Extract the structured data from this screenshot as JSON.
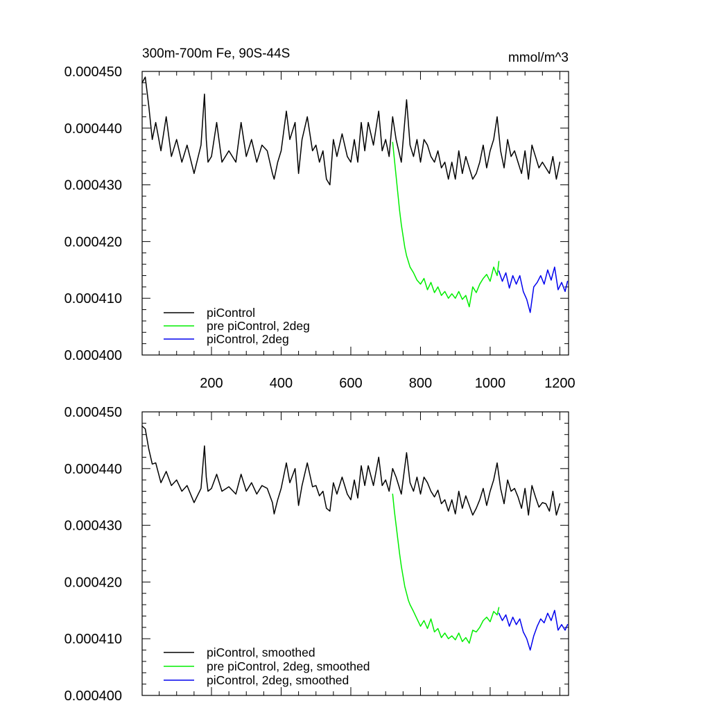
{
  "chart_data": [
    {
      "type": "line",
      "title": "300m-700m Fe, 90S-44S",
      "units": "mmol/m^3",
      "xlim": [
        1,
        1225
      ],
      "ylim": [
        0.0004,
        0.00045
      ],
      "x_ticks": [
        200,
        400,
        600,
        800,
        1000,
        1200
      ],
      "x_tick_labels": [
        "200",
        "400",
        "600",
        "800",
        "1000",
        "1200"
      ],
      "y_ticks": [
        0.0004,
        0.00041,
        0.00042,
        0.00043,
        0.00044,
        0.00045
      ],
      "y_tick_labels": [
        "0.000400",
        "0.000410",
        "0.000420",
        "0.000430",
        "0.000440",
        "0.000450"
      ],
      "legend_position": "bottom-left",
      "series": [
        {
          "name": "piControl",
          "color": "#000000",
          "x": [
            1,
            10,
            20,
            30,
            40,
            55,
            70,
            85,
            100,
            115,
            130,
            150,
            170,
            180,
            185,
            190,
            200,
            215,
            230,
            250,
            270,
            285,
            300,
            315,
            330,
            345,
            360,
            375,
            380,
            390,
            400,
            415,
            425,
            440,
            450,
            460,
            475,
            490,
            500,
            510,
            520,
            530,
            540,
            550,
            560,
            575,
            590,
            600,
            610,
            620,
            630,
            640,
            650,
            665,
            680,
            690,
            700,
            710,
            720,
            730,
            745,
            760,
            770,
            780,
            790,
            800,
            810,
            820,
            830,
            840,
            850,
            860,
            870,
            880,
            890,
            900,
            910,
            920,
            930,
            940,
            950,
            960,
            970,
            980,
            990,
            1000,
            1010,
            1020,
            1030,
            1040,
            1050,
            1060,
            1070,
            1080,
            1090,
            1100,
            1110,
            1120,
            1130,
            1140,
            1150,
            1160,
            1170,
            1180,
            1190,
            1200
          ],
          "values": [
            0.000448,
            0.000449,
            0.000444,
            0.000438,
            0.000441,
            0.000436,
            0.000442,
            0.000435,
            0.000438,
            0.000434,
            0.000437,
            0.000432,
            0.000437,
            0.000446,
            0.000438,
            0.000434,
            0.000435,
            0.000441,
            0.000434,
            0.000436,
            0.000434,
            0.000441,
            0.000435,
            0.000438,
            0.000434,
            0.000437,
            0.000436,
            0.000432,
            0.000431,
            0.000434,
            0.000436,
            0.000443,
            0.000438,
            0.000441,
            0.000432,
            0.000438,
            0.000442,
            0.000436,
            0.000437,
            0.000434,
            0.000436,
            0.000431,
            0.00043,
            0.000438,
            0.000435,
            0.000439,
            0.000435,
            0.000434,
            0.000438,
            0.000434,
            0.000441,
            0.000436,
            0.000441,
            0.000437,
            0.000443,
            0.000436,
            0.000438,
            0.000435,
            0.000442,
            0.000438,
            0.000434,
            0.000445,
            0.000437,
            0.000435,
            0.000438,
            0.000434,
            0.000438,
            0.000437,
            0.000435,
            0.000434,
            0.000436,
            0.000433,
            0.000434,
            0.000431,
            0.000434,
            0.000431,
            0.000436,
            0.000432,
            0.000435,
            0.000433,
            0.000431,
            0.000432,
            0.000434,
            0.000437,
            0.000433,
            0.000436,
            0.000438,
            0.000442,
            0.000436,
            0.000433,
            0.000438,
            0.000435,
            0.000436,
            0.000434,
            0.000432,
            0.000436,
            0.000431,
            0.000437,
            0.000435,
            0.000433,
            0.000434,
            0.000433,
            0.000432,
            0.000435,
            0.000431,
            0.000434
          ]
        },
        {
          "name": "pre piControl, 2deg",
          "color": "#00ee00",
          "x": [
            720,
            725,
            730,
            735,
            740,
            745,
            750,
            755,
            760,
            765,
            770,
            780,
            790,
            800,
            810,
            820,
            830,
            840,
            850,
            860,
            870,
            880,
            890,
            900,
            910,
            920,
            930,
            940,
            950,
            960,
            970,
            980,
            990,
            1000,
            1010,
            1020,
            1025
          ],
          "values": [
            0.0004375,
            0.0004345,
            0.0004315,
            0.0004285,
            0.0004255,
            0.000423,
            0.000421,
            0.000419,
            0.0004175,
            0.0004165,
            0.0004155,
            0.0004145,
            0.0004132,
            0.0004125,
            0.0004135,
            0.0004115,
            0.0004128,
            0.000411,
            0.000412,
            0.0004105,
            0.0004112,
            0.00041,
            0.0004108,
            0.00041,
            0.0004112,
            0.0004098,
            0.0004105,
            0.0004085,
            0.000412,
            0.000411,
            0.0004125,
            0.0004135,
            0.0004142,
            0.000413,
            0.0004155,
            0.000414,
            0.0004165
          ]
        },
        {
          "name": "piControl, 2deg",
          "color": "#0000ee",
          "x": [
            1025,
            1035,
            1045,
            1055,
            1065,
            1075,
            1085,
            1095,
            1105,
            1115,
            1125,
            1135,
            1145,
            1155,
            1165,
            1175,
            1185,
            1195,
            1205,
            1215,
            1222
          ],
          "values": [
            0.0004148,
            0.000413,
            0.0004145,
            0.0004118,
            0.000414,
            0.0004125,
            0.000414,
            0.0004112,
            0.0004098,
            0.0004075,
            0.000412,
            0.0004128,
            0.000414,
            0.0004125,
            0.000415,
            0.0004132,
            0.0004155,
            0.0004115,
            0.0004128,
            0.0004112,
            0.000413
          ]
        }
      ]
    },
    {
      "type": "line",
      "title": "",
      "xlim": [
        1,
        1225
      ],
      "ylim": [
        0.0004,
        0.00045
      ],
      "x_ticks": [
        200,
        400,
        600,
        800,
        1000,
        1200
      ],
      "x_tick_labels": [],
      "y_ticks": [
        0.0004,
        0.00041,
        0.00042,
        0.00043,
        0.00044,
        0.00045
      ],
      "y_tick_labels": [
        "0.000400",
        "0.000410",
        "0.000420",
        "0.000430",
        "0.000440",
        "0.000450"
      ],
      "legend_position": "bottom-left",
      "series": [
        {
          "name": "piControl, smoothed",
          "color": "#000000",
          "x": [
            1,
            10,
            20,
            30,
            40,
            55,
            70,
            85,
            100,
            115,
            130,
            150,
            170,
            180,
            185,
            190,
            200,
            215,
            230,
            250,
            270,
            285,
            300,
            315,
            330,
            345,
            360,
            375,
            380,
            390,
            400,
            415,
            425,
            440,
            450,
            460,
            475,
            490,
            500,
            510,
            520,
            530,
            540,
            550,
            560,
            575,
            590,
            600,
            610,
            620,
            630,
            640,
            650,
            665,
            680,
            690,
            700,
            710,
            720,
            730,
            745,
            760,
            770,
            780,
            790,
            800,
            810,
            820,
            830,
            840,
            850,
            860,
            870,
            880,
            890,
            900,
            910,
            920,
            930,
            940,
            950,
            960,
            970,
            980,
            990,
            1000,
            1010,
            1020,
            1030,
            1040,
            1050,
            1060,
            1070,
            1080,
            1090,
            1100,
            1110,
            1120,
            1130,
            1140,
            1150,
            1160,
            1170,
            1180,
            1190,
            1200
          ],
          "values": [
            0.0004475,
            0.000447,
            0.0004435,
            0.0004408,
            0.000441,
            0.0004375,
            0.0004395,
            0.000437,
            0.000438,
            0.000436,
            0.000437,
            0.000434,
            0.0004365,
            0.000444,
            0.0004385,
            0.000436,
            0.0004365,
            0.000439,
            0.000436,
            0.0004368,
            0.0004355,
            0.000439,
            0.000436,
            0.0004375,
            0.0004355,
            0.000437,
            0.0004365,
            0.000434,
            0.000432,
            0.0004345,
            0.0004365,
            0.000441,
            0.0004375,
            0.00044,
            0.0004335,
            0.000437,
            0.000441,
            0.0004368,
            0.000437,
            0.0004352,
            0.000436,
            0.000433,
            0.0004325,
            0.0004375,
            0.0004355,
            0.0004385,
            0.0004355,
            0.0004345,
            0.000438,
            0.0004348,
            0.0004405,
            0.000437,
            0.0004405,
            0.000437,
            0.000442,
            0.000437,
            0.000438,
            0.000436,
            0.00044,
            0.0004385,
            0.0004355,
            0.0004428,
            0.0004375,
            0.000436,
            0.0004385,
            0.0004355,
            0.0004385,
            0.0004375,
            0.000436,
            0.000435,
            0.0004362,
            0.0004338,
            0.0004345,
            0.0004325,
            0.0004345,
            0.000432,
            0.000436,
            0.000433,
            0.0004352,
            0.0004335,
            0.0004318,
            0.000433,
            0.0004345,
            0.0004365,
            0.0004335,
            0.000436,
            0.000438,
            0.000441,
            0.0004365,
            0.0004338,
            0.000438,
            0.000436,
            0.0004365,
            0.000435,
            0.000433,
            0.0004365,
            0.0004318,
            0.000437,
            0.000435,
            0.0004332,
            0.000434,
            0.0004338,
            0.0004325,
            0.000436,
            0.0004318,
            0.0004338
          ]
        },
        {
          "name": "pre piControl, 2deg, smoothed",
          "color": "#00ee00",
          "x": [
            720,
            725,
            730,
            735,
            740,
            745,
            750,
            755,
            760,
            765,
            770,
            780,
            790,
            800,
            810,
            820,
            830,
            840,
            850,
            860,
            870,
            880,
            890,
            900,
            910,
            920,
            930,
            940,
            950,
            960,
            970,
            980,
            990,
            1000,
            1010,
            1020,
            1025
          ],
          "values": [
            0.0004355,
            0.0004325,
            0.00043,
            0.0004275,
            0.000425,
            0.0004228,
            0.000421,
            0.0004192,
            0.000418,
            0.0004168,
            0.000416,
            0.0004148,
            0.0004135,
            0.0004122,
            0.0004132,
            0.0004118,
            0.0004135,
            0.0004112,
            0.0004118,
            0.0004102,
            0.000411,
            0.00041,
            0.0004105,
            0.0004098,
            0.000411,
            0.0004095,
            0.0004102,
            0.0004092,
            0.0004115,
            0.0004112,
            0.000412,
            0.0004132,
            0.0004138,
            0.000413,
            0.0004148,
            0.0004142,
            0.0004155
          ]
        },
        {
          "name": "piControl, 2deg, smoothed",
          "color": "#0000ee",
          "x": [
            1025,
            1035,
            1045,
            1055,
            1065,
            1075,
            1085,
            1095,
            1105,
            1115,
            1125,
            1135,
            1145,
            1155,
            1165,
            1175,
            1185,
            1195,
            1205,
            1215,
            1222
          ],
          "values": [
            0.0004145,
            0.0004132,
            0.0004142,
            0.0004122,
            0.0004138,
            0.0004125,
            0.0004135,
            0.0004112,
            0.00041,
            0.000408,
            0.0004105,
            0.0004122,
            0.0004135,
            0.0004128,
            0.0004145,
            0.0004132,
            0.000415,
            0.0004115,
            0.0004125,
            0.0004115,
            0.0004125
          ]
        }
      ]
    }
  ]
}
